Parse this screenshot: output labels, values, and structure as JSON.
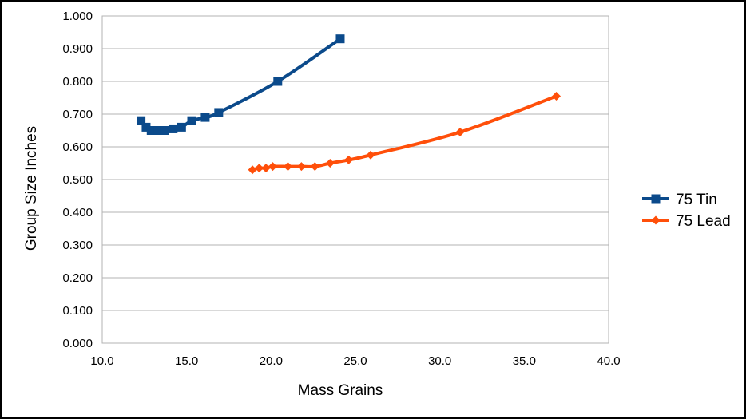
{
  "chart_data": {
    "type": "scatter",
    "title": "",
    "xlabel": "Mass Grains",
    "ylabel": "Group Size Inches",
    "xlim": [
      10.0,
      40.0
    ],
    "ylim": [
      0.0,
      1.0
    ],
    "x_ticks": [
      "10.0",
      "15.0",
      "20.0",
      "25.0",
      "30.0",
      "35.0",
      "40.0"
    ],
    "y_ticks": [
      "0.000",
      "0.100",
      "0.200",
      "0.300",
      "0.400",
      "0.500",
      "0.600",
      "0.700",
      "0.800",
      "0.900",
      "1.000"
    ],
    "grid": "horizontal",
    "legend_position": "right",
    "series": [
      {
        "name": "75 Tin",
        "color": "#0b4a8b",
        "marker": "square",
        "x": [
          12.3,
          12.6,
          12.9,
          13.3,
          13.7,
          14.2,
          14.7,
          15.3,
          16.1,
          16.9,
          20.4,
          24.1
        ],
        "y": [
          0.68,
          0.66,
          0.65,
          0.65,
          0.65,
          0.655,
          0.66,
          0.68,
          0.69,
          0.705,
          0.8,
          0.93
        ]
      },
      {
        "name": "75 Lead",
        "color": "#ff4f0a",
        "marker": "diamond",
        "x": [
          18.9,
          19.3,
          19.7,
          20.1,
          21.0,
          21.8,
          22.6,
          23.5,
          24.6,
          25.9,
          31.2,
          36.9
        ],
        "y": [
          0.53,
          0.535,
          0.535,
          0.54,
          0.54,
          0.54,
          0.54,
          0.55,
          0.56,
          0.575,
          0.645,
          0.755
        ]
      }
    ]
  }
}
